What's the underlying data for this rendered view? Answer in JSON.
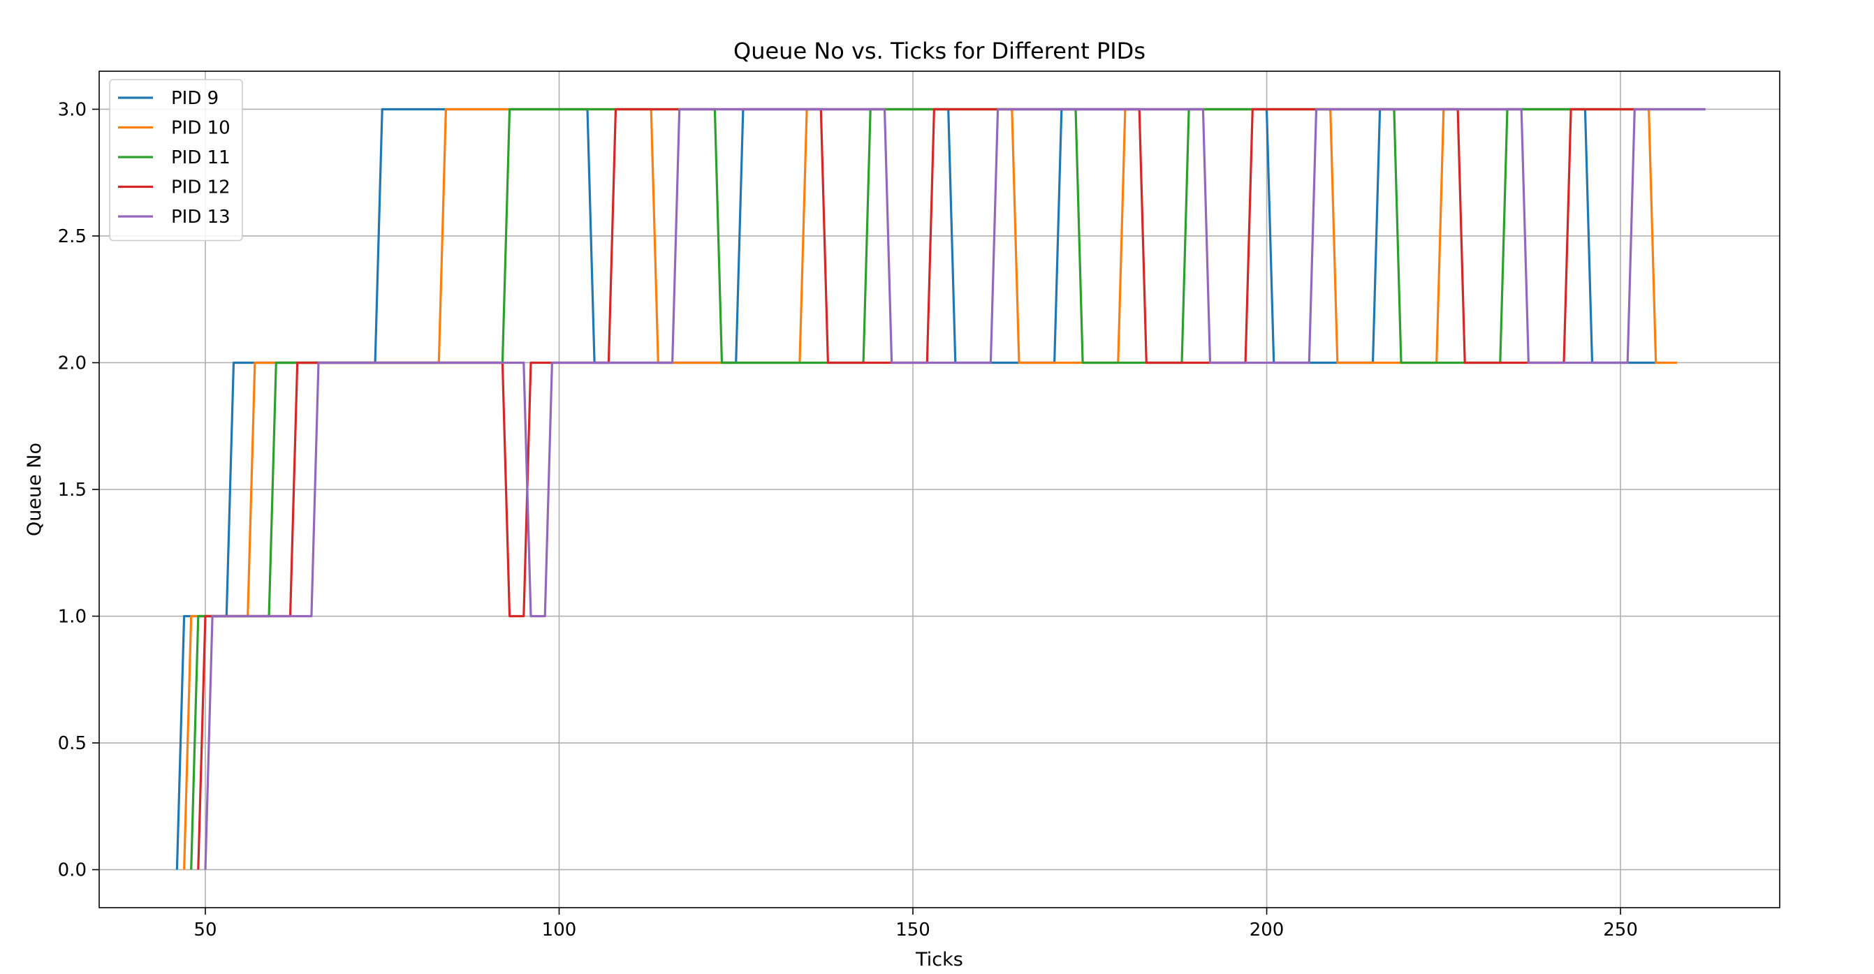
{
  "chart_data": {
    "type": "line",
    "title": "Queue No vs. Ticks for Different PIDs",
    "xlabel": "Ticks",
    "ylabel": "Queue No",
    "xlim": [
      35,
      272.5
    ],
    "ylim": [
      -0.15,
      3.15
    ],
    "xticks": [
      50,
      100,
      150,
      200,
      250
    ],
    "yticks": [
      0.0,
      0.5,
      1.0,
      1.5,
      2.0,
      2.5,
      3.0
    ],
    "xtick_labels": [
      "50",
      "100",
      "150",
      "200",
      "250"
    ],
    "ytick_labels": [
      "0.0",
      "0.5",
      "1.0",
      "1.5",
      "2.0",
      "2.5",
      "3.0"
    ],
    "grid": true,
    "legend_position": "upper-left",
    "series": [
      {
        "name": "PID 9",
        "color": "#1f77b4",
        "points": [
          [
            46,
            0
          ],
          [
            47,
            1
          ],
          [
            53,
            1
          ],
          [
            54,
            2
          ],
          [
            74,
            2
          ],
          [
            75,
            3
          ],
          [
            104,
            3
          ],
          [
            105,
            2
          ],
          [
            125,
            2
          ],
          [
            126,
            3
          ],
          [
            155,
            3
          ],
          [
            156,
            2
          ],
          [
            170,
            2
          ],
          [
            171,
            3
          ],
          [
            200,
            3
          ],
          [
            201,
            2
          ],
          [
            215,
            2
          ],
          [
            216,
            3
          ],
          [
            245,
            3
          ],
          [
            246,
            2
          ],
          [
            255,
            2
          ]
        ]
      },
      {
        "name": "PID 10",
        "color": "#ff7f0e",
        "points": [
          [
            47,
            0
          ],
          [
            48,
            1
          ],
          [
            56,
            1
          ],
          [
            57,
            2
          ],
          [
            83,
            2
          ],
          [
            84,
            3
          ],
          [
            113,
            3
          ],
          [
            114,
            2
          ],
          [
            134,
            2
          ],
          [
            135,
            3
          ],
          [
            164,
            3
          ],
          [
            165,
            2
          ],
          [
            179,
            2
          ],
          [
            180,
            3
          ],
          [
            209,
            3
          ],
          [
            210,
            2
          ],
          [
            224,
            2
          ],
          [
            225,
            3
          ],
          [
            254,
            3
          ],
          [
            255,
            2
          ],
          [
            258,
            2
          ]
        ]
      },
      {
        "name": "PID 11",
        "color": "#2ca02c",
        "points": [
          [
            48,
            0
          ],
          [
            49,
            1
          ],
          [
            59,
            1
          ],
          [
            60,
            2
          ],
          [
            92,
            2
          ],
          [
            93,
            3
          ],
          [
            122,
            3
          ],
          [
            123,
            2
          ],
          [
            143,
            2
          ],
          [
            144,
            3
          ],
          [
            173,
            3
          ],
          [
            174,
            2
          ],
          [
            188,
            2
          ],
          [
            189,
            3
          ],
          [
            218,
            3
          ],
          [
            219,
            2
          ],
          [
            233,
            2
          ],
          [
            234,
            3
          ],
          [
            262,
            3
          ]
        ]
      },
      {
        "name": "PID 12",
        "color": "#d62728",
        "points": [
          [
            49,
            0
          ],
          [
            50,
            1
          ],
          [
            62,
            1
          ],
          [
            63,
            2
          ],
          [
            92,
            2
          ],
          [
            93,
            1
          ],
          [
            95,
            1
          ],
          [
            96,
            2
          ],
          [
            107,
            2
          ],
          [
            108,
            3
          ],
          [
            137,
            3
          ],
          [
            138,
            2
          ],
          [
            152,
            2
          ],
          [
            153,
            3
          ],
          [
            182,
            3
          ],
          [
            183,
            2
          ],
          [
            197,
            2
          ],
          [
            198,
            3
          ],
          [
            227,
            3
          ],
          [
            228,
            2
          ],
          [
            242,
            2
          ],
          [
            243,
            3
          ],
          [
            252,
            3
          ]
        ]
      },
      {
        "name": "PID 13",
        "color": "#9467bd",
        "points": [
          [
            50,
            0
          ],
          [
            51,
            1
          ],
          [
            65,
            1
          ],
          [
            66,
            2
          ],
          [
            95,
            2
          ],
          [
            96,
            1
          ],
          [
            98,
            1
          ],
          [
            99,
            2
          ],
          [
            116,
            2
          ],
          [
            117,
            3
          ],
          [
            146,
            3
          ],
          [
            147,
            2
          ],
          [
            161,
            2
          ],
          [
            162,
            3
          ],
          [
            191,
            3
          ],
          [
            192,
            2
          ],
          [
            206,
            2
          ],
          [
            207,
            3
          ],
          [
            236,
            3
          ],
          [
            237,
            2
          ],
          [
            251,
            2
          ],
          [
            252,
            3
          ],
          [
            262,
            3
          ]
        ]
      }
    ]
  }
}
